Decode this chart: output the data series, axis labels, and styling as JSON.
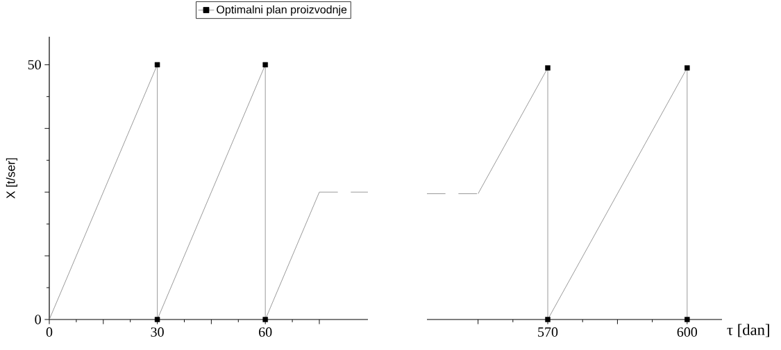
{
  "chart_data": [
    {
      "type": "line",
      "ylabel": "X [t/ser]",
      "xlim": [
        0,
        88.5
      ],
      "ylim": [
        0,
        55.5
      ],
      "xticks": [
        0,
        {
          "value": 15,
          "label": null
        },
        30,
        {
          "value": 45,
          "label": null
        },
        60,
        {
          "value": 75,
          "label": null
        }
      ],
      "yticks": [
        0,
        {
          "value": 12.5,
          "label": null
        },
        {
          "value": 25,
          "label": null
        },
        {
          "value": 37.5,
          "label": null
        },
        50
      ],
      "legend": "top",
      "series": [
        {
          "name": "Optimalni plan proizvodnje",
          "color": "#808080",
          "x": [
            0,
            30,
            30,
            60,
            60,
            75
          ],
          "values": [
            0,
            50,
            0,
            50,
            0,
            25
          ]
        },
        {
          "line_style": "dashed",
          "color": "#808080",
          "x": [
            75,
            88.5
          ],
          "values": [
            25,
            25
          ]
        },
        {
          "type": "scatter",
          "marker": "square",
          "color": "#000000",
          "x": [
            30,
            30,
            60,
            60
          ],
          "values": [
            50,
            0,
            50,
            0
          ]
        }
      ]
    },
    {
      "type": "line",
      "xlabel": "τ [dan]",
      "xlim": [
        544,
        607.5
      ],
      "ylim": [
        0,
        50
      ],
      "yticks": [
        0,
        50
      ],
      "xticks": [
        {
          "value": 555,
          "label": null
        },
        570,
        {
          "value": 585,
          "label": null
        },
        600
      ],
      "tick_labels": "x",
      "series": [
        {
          "line_style": "dashed",
          "color": "#808080",
          "x": [
            544,
            555
          ],
          "values": [
            25,
            25
          ]
        },
        {
          "color": "#808080",
          "x": [
            555,
            570,
            570,
            600,
            600
          ],
          "values": [
            25,
            50,
            0,
            50,
            0
          ]
        },
        {
          "type": "scatter",
          "marker": "square",
          "color": "#000000",
          "x": [
            570,
            570,
            600,
            600
          ],
          "values": [
            50,
            0,
            50,
            0
          ]
        }
      ]
    }
  ]
}
